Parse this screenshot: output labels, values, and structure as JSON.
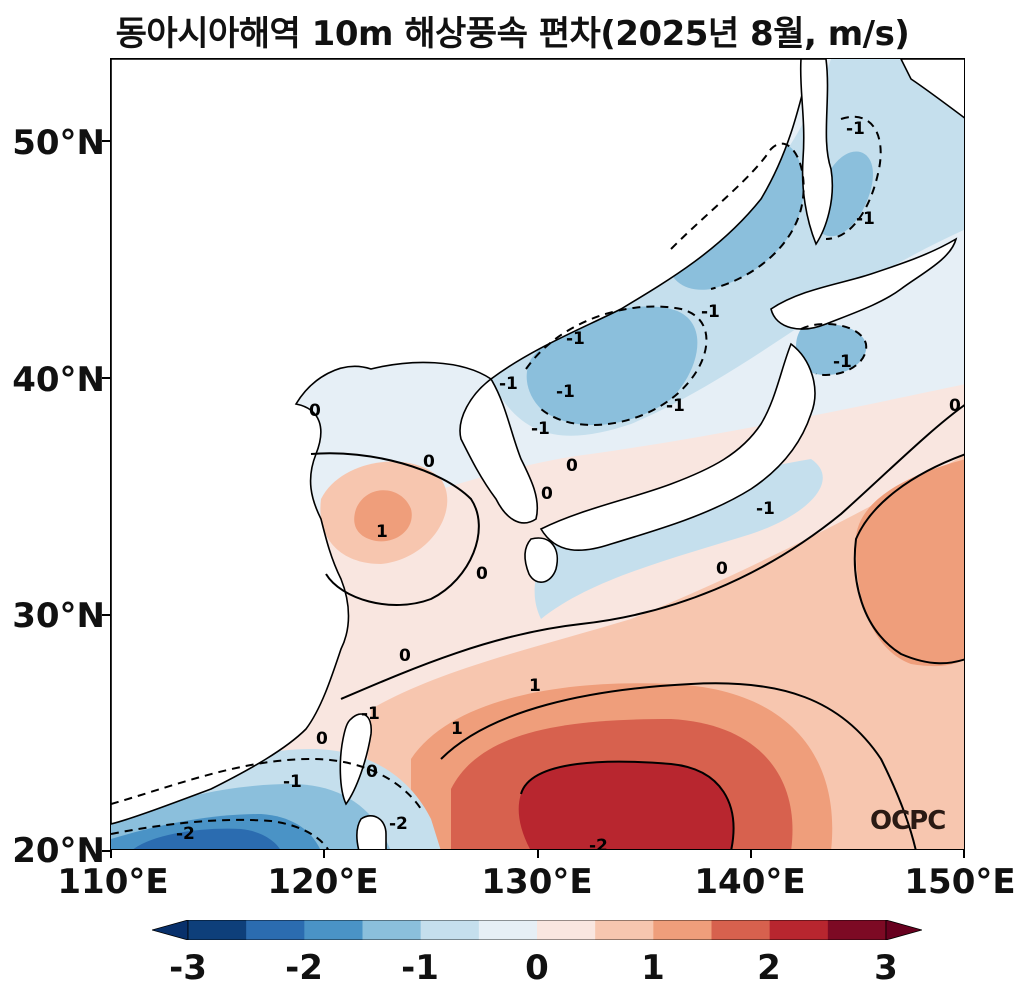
{
  "title": "동아시아해역 10m 해상풍속 편차(2025년 8월, m/s)",
  "map": {
    "lon_range": [
      110,
      150
    ],
    "lat_range": [
      20,
      53.5
    ],
    "lat_labels": [
      "20°N",
      "30°N",
      "40°N",
      "50°N"
    ],
    "lon_labels": [
      "110°E",
      "120°E",
      "130°E",
      "140°E",
      "150°E"
    ],
    "contour_labels": [
      "0",
      "0",
      "0",
      "0",
      "0",
      "0",
      "0",
      "0",
      "0",
      "0",
      "1",
      "1",
      "1",
      "-1",
      "-1",
      "-1",
      "-1",
      "-1",
      "-1",
      "-1",
      "-1",
      "-1",
      "-1",
      "-1",
      "-1",
      "-2",
      "-2",
      "-2"
    ],
    "source_logo": "OCPC"
  },
  "colorbar": {
    "ticks": [
      "-3",
      "-2",
      "-1",
      "0",
      "1",
      "2",
      "3"
    ],
    "colors": [
      "#0e3f7a",
      "#2b6cb0",
      "#4a93c6",
      "#8bbfdc",
      "#c5dfed",
      "#e6eff6",
      "#f9e6e0",
      "#f7c6af",
      "#ef9e7b",
      "#d7614e",
      "#b8262f",
      "#7d0a24"
    ],
    "extend_low": "#08306b",
    "extend_high": "#67001f"
  }
}
